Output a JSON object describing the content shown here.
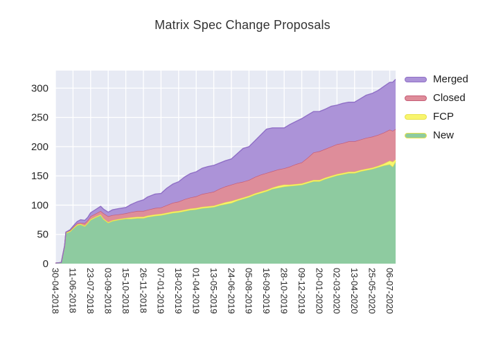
{
  "chart_data": {
    "type": "area",
    "stacked": true,
    "title": "Matrix Spec Change Proposals",
    "xlabel": "",
    "ylabel": "",
    "x_unit": "days since first tick (30-04-2018), ticks every 42 days",
    "xlim_days": [
      0,
      812
    ],
    "ylim": [
      0,
      330
    ],
    "yticks": [
      0,
      50,
      100,
      150,
      200,
      250,
      300
    ],
    "grid": true,
    "plot_background": "#e7eaf4",
    "gridline_color": "#ffffff",
    "legend_position": "right-top-outside",
    "legend_order": [
      "Merged",
      "Closed",
      "FCP",
      "New"
    ],
    "x_tick_interval_days": 42,
    "x_tick_labels": [
      "30-04-2018",
      "11-06-2018",
      "23-07-2018",
      "03-09-2018",
      "15-10-2018",
      "26-11-2018",
      "07-01-2019",
      "18-02-2019",
      "01-04-2019",
      "13-05-2019",
      "24-06-2019",
      "05-08-2019",
      "16-09-2019",
      "28-10-2019",
      "09-12-2019",
      "20-01-2020",
      "02-03-2020",
      "13-04-2020",
      "25-05-2020",
      "06-07-2020"
    ],
    "x_days": [
      0,
      14,
      22,
      25,
      35,
      42,
      52,
      60,
      70,
      77,
      84,
      95,
      108,
      115,
      126,
      136,
      150,
      168,
      180,
      196,
      210,
      220,
      238,
      252,
      266,
      280,
      294,
      308,
      322,
      336,
      350,
      364,
      378,
      392,
      406,
      420,
      434,
      448,
      462,
      476,
      490,
      504,
      518,
      532,
      546,
      560,
      574,
      588,
      602,
      616,
      630,
      644,
      658,
      672,
      686,
      700,
      714,
      728,
      742,
      756,
      770,
      784,
      798,
      805,
      812
    ],
    "series": [
      {
        "name": "New",
        "fill": "#8ecba0",
        "edge": "#e8e24a",
        "values": [
          1,
          2,
          30,
          52,
          55,
          60,
          66,
          67,
          64,
          69,
          75,
          79,
          83,
          76,
          70,
          73,
          75,
          77,
          77,
          78,
          78,
          80,
          82,
          83,
          85,
          87,
          88,
          90,
          92,
          93,
          95,
          96,
          97,
          100,
          102,
          104,
          108,
          111,
          114,
          118,
          121,
          124,
          128,
          130,
          132,
          133,
          134,
          135,
          138,
          141,
          141,
          145,
          148,
          151,
          153,
          155,
          155,
          158,
          160,
          162,
          165,
          168,
          170,
          166,
          175
        ]
      },
      {
        "name": "FCP",
        "fill": "#f8f56e",
        "edge": "#e8e24a",
        "values": [
          0,
          0,
          1,
          1,
          1,
          1,
          1,
          1,
          1,
          1,
          1,
          1,
          1,
          1,
          1,
          1,
          1,
          1,
          2,
          2,
          2,
          2,
          2,
          2,
          2,
          2,
          2,
          2,
          2,
          2,
          2,
          2,
          2,
          2,
          3,
          3,
          2,
          2,
          2,
          2,
          2,
          2,
          2,
          3,
          3,
          2,
          2,
          2,
          2,
          2,
          2,
          2,
          2,
          2,
          2,
          2,
          2,
          2,
          2,
          2,
          2,
          3,
          6,
          8,
          3
        ]
      },
      {
        "name": "Closed",
        "fill": "#de8d9a",
        "edge": "#c65b76",
        "values": [
          0,
          0,
          0,
          1,
          1,
          1,
          2,
          2,
          4,
          4,
          5,
          5,
          6,
          9,
          10,
          9,
          8,
          8,
          9,
          10,
          10,
          10,
          11,
          11,
          13,
          15,
          16,
          18,
          19,
          20,
          22,
          23,
          24,
          26,
          27,
          28,
          28,
          27,
          27,
          28,
          29,
          29,
          28,
          28,
          28,
          31,
          34,
          36,
          41,
          47,
          49,
          49,
          50,
          51,
          51,
          52,
          52,
          52,
          53,
          53,
          53,
          53,
          53,
          53,
          52
        ]
      },
      {
        "name": "Merged",
        "fill": "#ac93d8",
        "edge": "#8f6fc6",
        "values": [
          0,
          0,
          0,
          0,
          1,
          2,
          3,
          5,
          5,
          5,
          6,
          7,
          8,
          7,
          7,
          9,
          10,
          10,
          13,
          16,
          19,
          22,
          24,
          24,
          29,
          32,
          34,
          38,
          41,
          42,
          44,
          45,
          45,
          44,
          44,
          44,
          50,
          57,
          57,
          62,
          68,
          75,
          74,
          71,
          69,
          72,
          73,
          75,
          73,
          70,
          68,
          68,
          69,
          67,
          68,
          67,
          67,
          70,
          73,
          74,
          76,
          79,
          81,
          83,
          85
        ]
      }
    ]
  }
}
